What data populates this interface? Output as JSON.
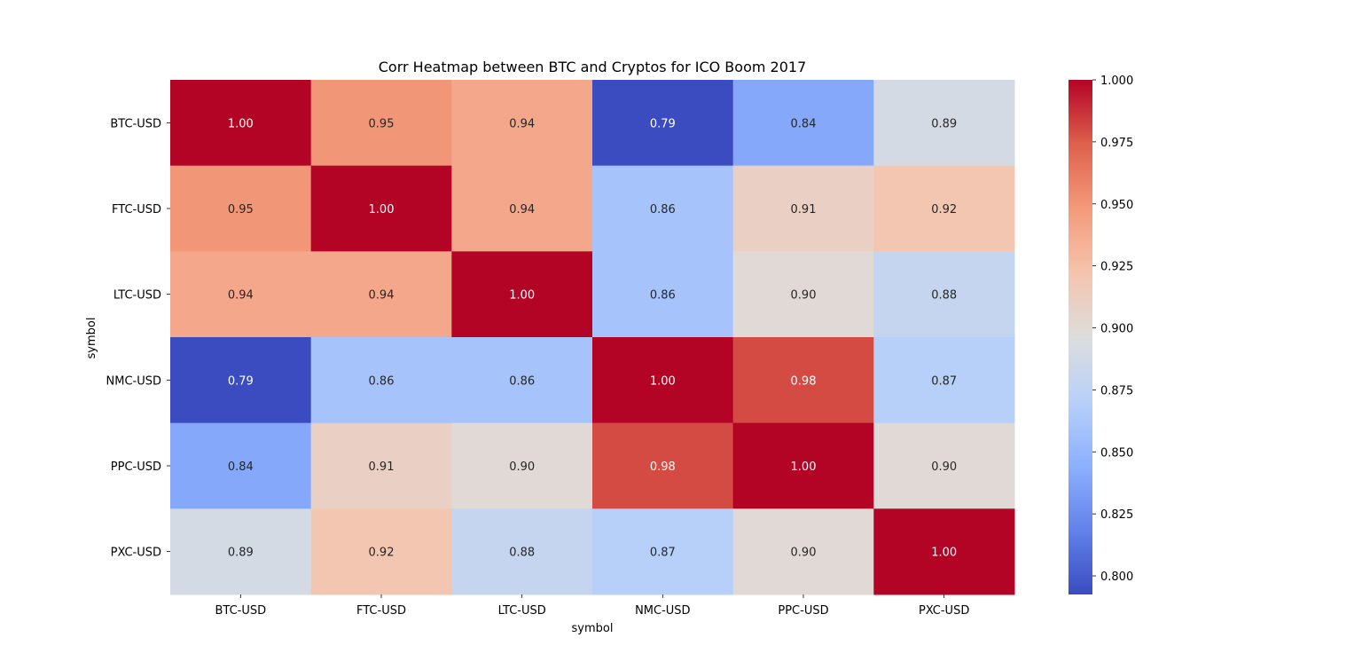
{
  "chart_data": {
    "type": "heatmap",
    "title": "Corr Heatmap between BTC and Cryptos for ICO Boom 2017",
    "xlabel": "symbol",
    "ylabel": "symbol",
    "x_categories": [
      "BTC-USD",
      "FTC-USD",
      "LTC-USD",
      "NMC-USD",
      "PPC-USD",
      "PXC-USD"
    ],
    "y_categories": [
      "BTC-USD",
      "FTC-USD",
      "LTC-USD",
      "NMC-USD",
      "PPC-USD",
      "PXC-USD"
    ],
    "values": [
      [
        1.0,
        0.95,
        0.94,
        0.79,
        0.84,
        0.89
      ],
      [
        0.95,
        1.0,
        0.94,
        0.86,
        0.91,
        0.92
      ],
      [
        0.94,
        0.94,
        1.0,
        0.86,
        0.9,
        0.88
      ],
      [
        0.79,
        0.86,
        0.86,
        1.0,
        0.98,
        0.87
      ],
      [
        0.84,
        0.91,
        0.9,
        0.98,
        1.0,
        0.9
      ],
      [
        0.89,
        0.92,
        0.88,
        0.87,
        0.9,
        1.0
      ]
    ],
    "cell_labels": [
      [
        "1.00",
        "0.95",
        "0.94",
        "0.79",
        "0.84",
        "0.89"
      ],
      [
        "0.95",
        "1.00",
        "0.94",
        "0.86",
        "0.91",
        "0.92"
      ],
      [
        "0.94",
        "0.94",
        "1.00",
        "0.86",
        "0.90",
        "0.88"
      ],
      [
        "0.79",
        "0.86",
        "0.86",
        "1.00",
        "0.98",
        "0.87"
      ],
      [
        "0.84",
        "0.91",
        "0.90",
        "0.98",
        "1.00",
        "0.90"
      ],
      [
        "0.89",
        "0.92",
        "0.88",
        "0.87",
        "0.90",
        "1.00"
      ]
    ],
    "colormap": "coolwarm",
    "vmin": 0.7925,
    "vmax": 1.0,
    "colorbar_ticks": [
      0.8,
      0.825,
      0.85,
      0.875,
      0.9,
      0.925,
      0.95,
      0.975,
      1.0
    ],
    "colorbar_tick_labels": [
      "0.800",
      "0.825",
      "0.850",
      "0.875",
      "0.900",
      "0.925",
      "0.950",
      "0.975",
      "1.000"
    ],
    "grid": false,
    "colorbar_position": "right"
  }
}
